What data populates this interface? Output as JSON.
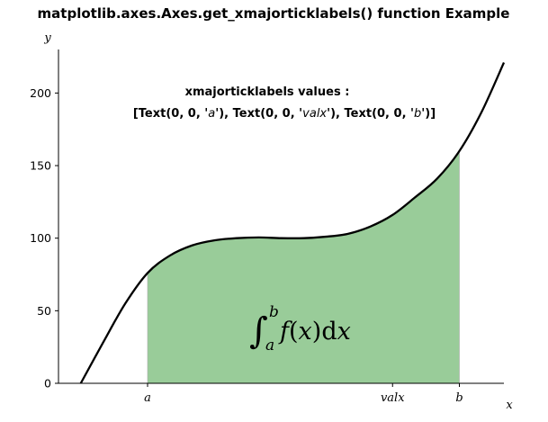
{
  "chart_data": {
    "type": "area",
    "title": "matplotlib.axes.Axes.get_xmajorticklabels() function Example",
    "xlabel": "x",
    "ylabel": "y",
    "ylim": [
      0,
      230
    ],
    "yticks": [
      0,
      50,
      100,
      150,
      200
    ],
    "xticks": [
      {
        "label": "a",
        "x": 2.0
      },
      {
        "label": "valx",
        "x": 7.5
      },
      {
        "label": "b",
        "x": 9.0
      }
    ],
    "xlim": [
      0,
      10
    ],
    "curve": {
      "x": [
        0.5,
        1.0,
        1.5,
        2.0,
        2.5,
        3.0,
        3.5,
        4.0,
        4.5,
        5.0,
        5.5,
        6.0,
        6.5,
        7.0,
        7.5,
        8.0,
        8.5,
        9.0,
        9.5,
        10.0
      ],
      "y": [
        0,
        28,
        55,
        76,
        88,
        95,
        98.5,
        100,
        100.5,
        100,
        100,
        101,
        103,
        108,
        116,
        128,
        141,
        160,
        187,
        221
      ]
    },
    "fill": {
      "from_x": 2.0,
      "to_x": 9.0,
      "color": "#99cc99"
    },
    "curve_color": "#000000",
    "integral_label": "∫ₐᵇ f(x)dx",
    "annotation": {
      "line1": "xmajorticklabels values :",
      "line2_parts": [
        "[Text(0, 0, '",
        "a",
        "'), Text(0, 0, '",
        "valx",
        "'), Text(0, 0, '",
        "b",
        "')]"
      ]
    },
    "grid": false
  }
}
